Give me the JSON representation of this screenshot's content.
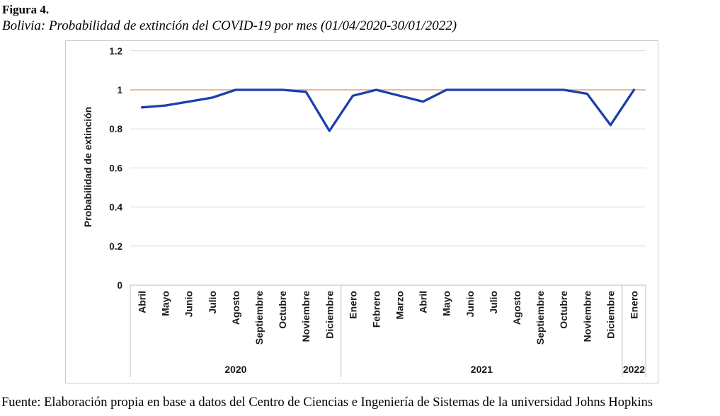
{
  "figure": {
    "label": "Figura 4.",
    "subtitle": "Bolivia: Probabilidad de extinción del COVID-19 por mes (01/04/2020-30/01/2022)"
  },
  "source": "Fuente: Elaboración propia en base a datos del Centro de Ciencias e Ingeniería de Sistemas de la universidad Johns Hopkins",
  "chart_data": {
    "type": "line",
    "title": "",
    "xlabel": "",
    "ylabel": "Probabilidad de extinción",
    "ylim": [
      0,
      1.2
    ],
    "yticks": [
      "0",
      "0.2",
      "0.4",
      "0.6",
      "0.8",
      "1",
      "1.2"
    ],
    "ytick_values": [
      0,
      0.2,
      0.4,
      0.6,
      0.8,
      1,
      1.2
    ],
    "grid": true,
    "legend": "none",
    "reference_line": {
      "value": 1,
      "color": "#dfa57a"
    },
    "line_color": "#1b3fae",
    "gridline_color": "#d9d9d9",
    "axis_color": "#bfbfbf",
    "groups": [
      {
        "year": "2020",
        "months": [
          "Abril",
          "Mayo",
          "Junio",
          "Julio",
          "Agosto",
          "Septiembre",
          "Octubre",
          "Noviembre",
          "Diciembre"
        ]
      },
      {
        "year": "2021",
        "months": [
          "Enero",
          "Febrero",
          "Marzo",
          "Abril",
          "Mayo",
          "Junio",
          "Julio",
          "Agosto",
          "Septiembre",
          "Octubre",
          "Noviembre",
          "Diciembre"
        ]
      },
      {
        "year": "2022",
        "months": [
          "Enero"
        ]
      }
    ],
    "values": [
      0.91,
      0.92,
      0.94,
      0.96,
      1.0,
      1.0,
      1.0,
      0.99,
      0.79,
      0.97,
      1.0,
      0.97,
      0.94,
      1.0,
      1.0,
      1.0,
      1.0,
      1.0,
      1.0,
      0.98,
      0.82,
      1.0
    ]
  }
}
